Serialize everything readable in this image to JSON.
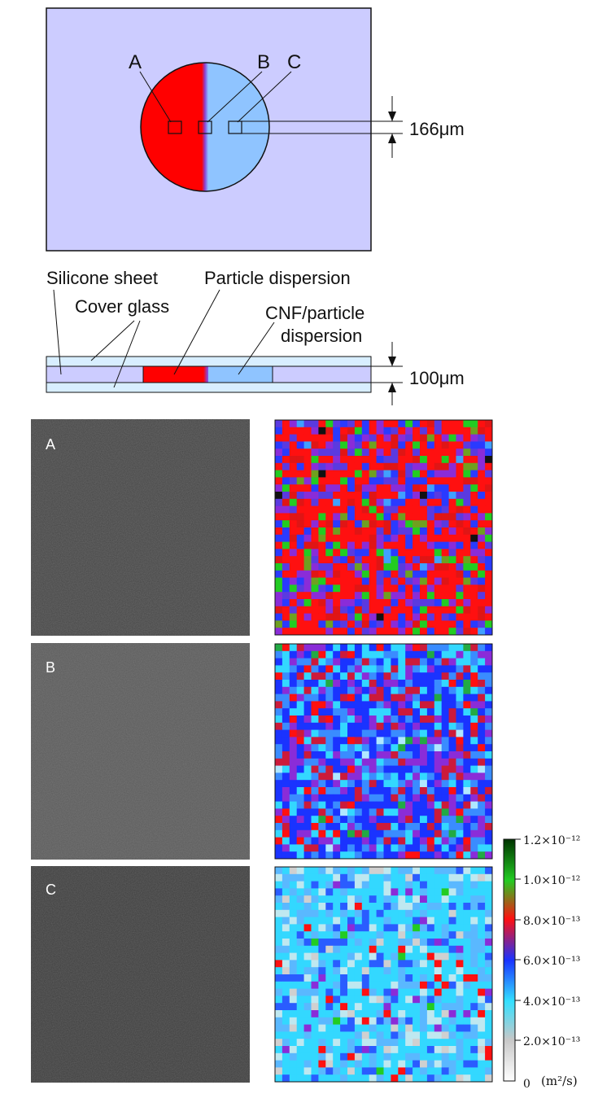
{
  "top_view": {
    "labels": {
      "a": "A",
      "b": "B",
      "c": "C"
    },
    "dimension": "166μm"
  },
  "cross_section": {
    "silicone_sheet": "Silicone sheet",
    "cover_glass": "Cover glass",
    "particle_dispersion": "Particle dispersion",
    "cnf_particle_line1": "CNF/particle",
    "cnf_particle_line2": "dispersion",
    "dimension": "100μm"
  },
  "panels": [
    {
      "label": "A"
    },
    {
      "label": "B"
    },
    {
      "label": "C"
    }
  ],
  "colorbar": {
    "ticks": [
      "1.2×10⁻¹²",
      "1.0×10⁻¹²",
      "8.0×10⁻¹³",
      "6.0×10⁻¹³",
      "4.0×10⁻¹³",
      "2.0×10⁻¹³",
      "0"
    ],
    "unit": "(m²/s)"
  },
  "colors": {
    "chamber_bg": "#ccccff",
    "particle_red": "#ff0000",
    "cnf_blue": "#8fc4ff",
    "glass": "#d8eeff"
  }
}
